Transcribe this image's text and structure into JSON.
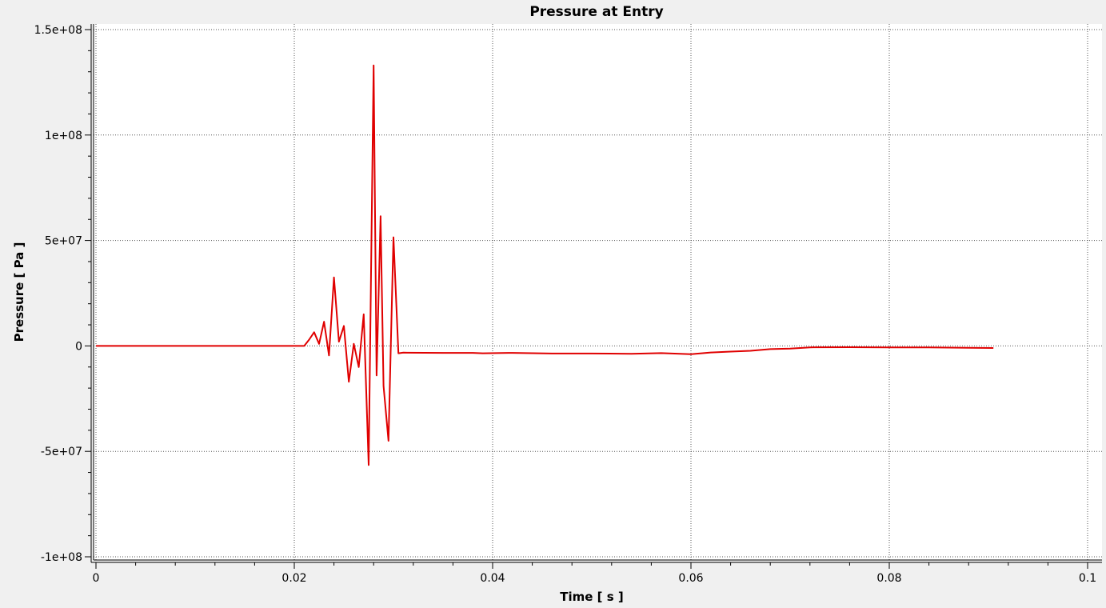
{
  "chart_data": {
    "type": "line",
    "title": "Pressure at Entry",
    "xlabel": "Time [ s ]",
    "ylabel": "Pressure [ Pa ]",
    "xlim": [
      0,
      0.1
    ],
    "ylim": [
      -100000000,
      150000000
    ],
    "x_ticks": [
      0,
      0.02,
      0.04,
      0.06,
      0.08,
      0.1
    ],
    "x_tick_labels": [
      "0",
      "0.02",
      "0.04",
      "0.06",
      "0.08",
      "0.1"
    ],
    "y_ticks": [
      -100000000,
      -50000000,
      0,
      50000000,
      100000000,
      150000000
    ],
    "y_tick_labels": [
      "-1e+08",
      "-5e+07",
      "0",
      "5e+07",
      "1e+08",
      "1.5e+08"
    ],
    "grid": true,
    "series": [
      {
        "color": "#e00000",
        "x": [
          0,
          0.021,
          0.0215,
          0.022,
          0.0225,
          0.023,
          0.0235,
          0.024,
          0.0245,
          0.025,
          0.0255,
          0.026,
          0.0265,
          0.027,
          0.0275,
          0.028,
          0.0283,
          0.0287,
          0.029,
          0.0295,
          0.03,
          0.0305,
          0.031,
          0.035,
          0.038,
          0.039,
          0.042,
          0.046,
          0.05,
          0.054,
          0.057,
          0.06,
          0.062,
          0.064,
          0.066,
          0.068,
          0.07,
          0.072,
          0.076,
          0.08,
          0.084,
          0.086,
          0.088,
          0.0905
        ],
        "y": [
          0,
          0,
          3000000,
          6500000,
          1000000,
          11500000,
          -4500000,
          32500000,
          2000000,
          9500000,
          -17000000,
          1000000,
          -10000000,
          15000000,
          -56500000,
          133000000,
          -14000000,
          61500000,
          -19000000,
          -45000000,
          51500000,
          -3500000,
          -3200000,
          -3300000,
          -3300000,
          -3500000,
          -3300000,
          -3600000,
          -3600000,
          -3700000,
          -3400000,
          -3900000,
          -3100000,
          -2700000,
          -2300000,
          -1500000,
          -1300000,
          -700000,
          -600000,
          -700000,
          -700000,
          -800000,
          -900000,
          -1000000
        ]
      }
    ]
  }
}
